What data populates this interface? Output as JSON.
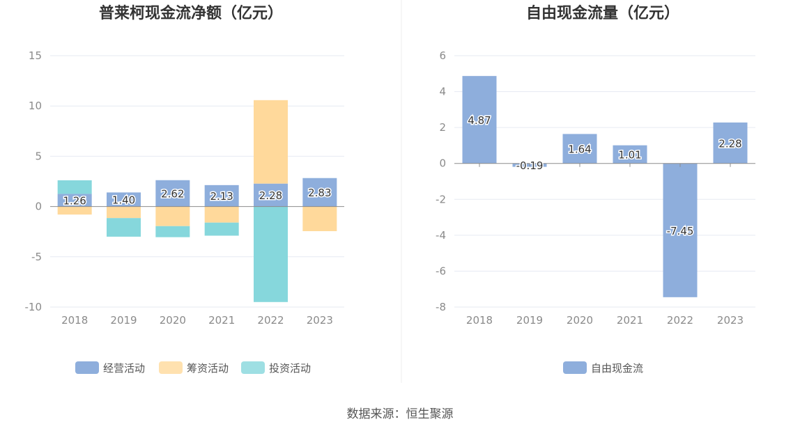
{
  "colors": {
    "operating": "#8eaedc",
    "financing": "#ffd99b",
    "investing": "#86d7dc",
    "free_cash_flow": "#8eaedc",
    "grid": "#e6eaf2",
    "axis": "#8c8c8c"
  },
  "source": "数据来源：恒生聚源",
  "chart_data": [
    {
      "type": "bar",
      "stacked": true,
      "title": "普莱柯现金流净额（亿元）",
      "categories": [
        "2018",
        "2019",
        "2020",
        "2021",
        "2022",
        "2023"
      ],
      "ylim": [
        -10,
        15
      ],
      "yticks": [
        15,
        10,
        5,
        0,
        -5,
        -10
      ],
      "grid": true,
      "legend_position": "bottom",
      "series": [
        {
          "name": "经营活动",
          "values": [
            1.26,
            1.4,
            2.62,
            2.13,
            2.28,
            2.83
          ],
          "labels": [
            "1.26",
            "1.40",
            "2.62",
            "2.13",
            "2.28",
            "2.83"
          ]
        },
        {
          "name": "筹资活动",
          "values": [
            -0.8,
            -1.15,
            -1.95,
            -1.6,
            8.3,
            -2.45
          ]
        },
        {
          "name": "投资活动",
          "values": [
            1.35,
            -1.85,
            -1.1,
            -1.3,
            -9.5,
            0
          ]
        }
      ]
    },
    {
      "type": "bar",
      "title": "自由现金流量（亿元）",
      "categories": [
        "2018",
        "2019",
        "2020",
        "2021",
        "2022",
        "2023"
      ],
      "ylim": [
        -8,
        6
      ],
      "yticks": [
        6,
        4,
        2,
        0,
        -2,
        -4,
        -6,
        -8
      ],
      "grid": true,
      "legend_position": "bottom",
      "series": [
        {
          "name": "自由现金流",
          "values": [
            4.87,
            -0.19,
            1.64,
            1.01,
            -7.45,
            2.28
          ],
          "labels": [
            "4.87",
            "-0.19",
            "1.64",
            "1.01",
            "-7.45",
            "2.28"
          ]
        }
      ]
    }
  ]
}
